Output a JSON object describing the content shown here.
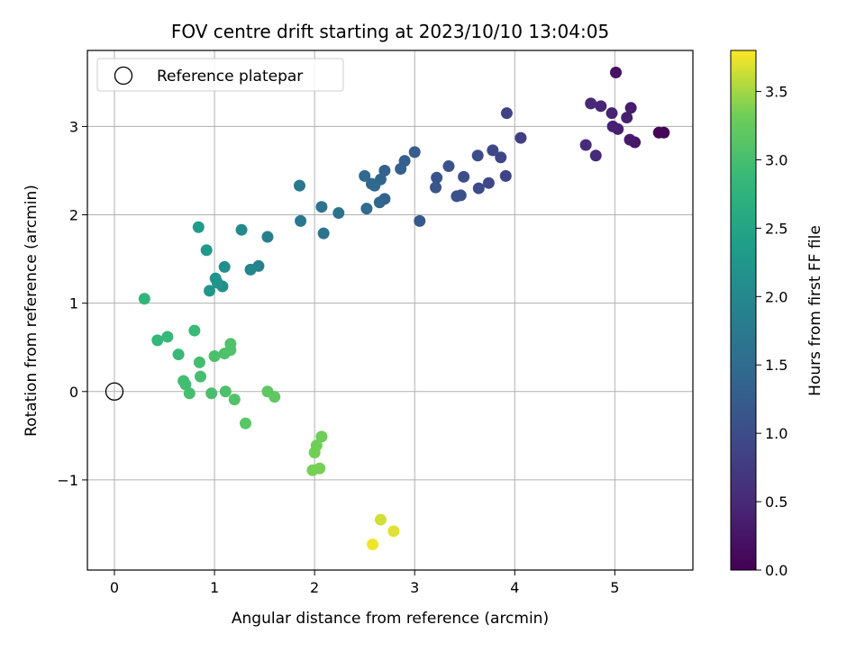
{
  "chart_data": {
    "type": "scatter",
    "title": "FOV centre drift starting at 2023/10/10 13:04:05",
    "xlabel": "Angular distance from reference (arcmin)",
    "ylabel": "Rotation from reference (arcmin)",
    "xlim": [
      -0.27,
      5.78
    ],
    "ylim": [
      -2.02,
      3.86
    ],
    "grid": true,
    "legend": {
      "placement": "top-left",
      "label": "Reference platepar"
    },
    "colorbar": {
      "label": "Hours from first FF file",
      "range": [
        0.0,
        3.8
      ],
      "colormap": "viridis",
      "ticks": [
        "0.0",
        "0.5",
        "1.0",
        "1.5",
        "2.0",
        "2.5",
        "3.0",
        "3.5"
      ],
      "tick_values": [
        0.0,
        0.5,
        1.0,
        1.5,
        2.0,
        2.5,
        3.0,
        3.5
      ]
    },
    "x_ticks": [
      "0",
      "1",
      "2",
      "3",
      "4",
      "5"
    ],
    "x_tick_values": [
      0,
      1,
      2,
      3,
      4,
      5
    ],
    "y_ticks": [
      "−1",
      "0",
      "1",
      "2",
      "3"
    ],
    "y_tick_values": [
      -1,
      0,
      1,
      2,
      3
    ],
    "reference_point": {
      "x": 0,
      "y": 0
    },
    "points": [
      {
        "x": 5.49,
        "y": 2.93,
        "c": 0.03
      },
      {
        "x": 5.44,
        "y": 2.93,
        "c": 0.06
      },
      {
        "x": 5.01,
        "y": 3.61,
        "c": 0.2
      },
      {
        "x": 5.2,
        "y": 2.82,
        "c": 0.25
      },
      {
        "x": 5.15,
        "y": 2.85,
        "c": 0.3
      },
      {
        "x": 5.16,
        "y": 3.21,
        "c": 0.33
      },
      {
        "x": 5.12,
        "y": 3.1,
        "c": 0.36
      },
      {
        "x": 5.03,
        "y": 2.97,
        "c": 0.38
      },
      {
        "x": 4.98,
        "y": 3.0,
        "c": 0.4
      },
      {
        "x": 4.97,
        "y": 3.15,
        "c": 0.42
      },
      {
        "x": 4.86,
        "y": 3.23,
        "c": 0.45
      },
      {
        "x": 4.76,
        "y": 3.26,
        "c": 0.48
      },
      {
        "x": 4.81,
        "y": 2.67,
        "c": 0.5
      },
      {
        "x": 4.71,
        "y": 2.79,
        "c": 0.53
      },
      {
        "x": 4.06,
        "y": 2.87,
        "c": 0.8
      },
      {
        "x": 3.92,
        "y": 3.15,
        "c": 0.85
      },
      {
        "x": 3.91,
        "y": 2.44,
        "c": 0.88
      },
      {
        "x": 3.86,
        "y": 2.65,
        "c": 0.9
      },
      {
        "x": 3.78,
        "y": 2.73,
        "c": 0.93
      },
      {
        "x": 3.74,
        "y": 2.36,
        "c": 0.95
      },
      {
        "x": 3.64,
        "y": 2.3,
        "c": 0.98
      },
      {
        "x": 3.63,
        "y": 2.67,
        "c": 1.0
      },
      {
        "x": 3.49,
        "y": 2.43,
        "c": 1.03
      },
      {
        "x": 3.46,
        "y": 2.22,
        "c": 1.05
      },
      {
        "x": 3.42,
        "y": 2.21,
        "c": 1.08
      },
      {
        "x": 3.34,
        "y": 2.55,
        "c": 1.1
      },
      {
        "x": 3.22,
        "y": 2.42,
        "c": 1.12
      },
      {
        "x": 3.21,
        "y": 2.31,
        "c": 1.15
      },
      {
        "x": 3.05,
        "y": 1.93,
        "c": 1.2
      },
      {
        "x": 3.0,
        "y": 2.71,
        "c": 1.25
      },
      {
        "x": 2.9,
        "y": 2.61,
        "c": 1.28
      },
      {
        "x": 2.86,
        "y": 2.52,
        "c": 1.3
      },
      {
        "x": 2.7,
        "y": 2.5,
        "c": 1.33
      },
      {
        "x": 2.7,
        "y": 2.18,
        "c": 1.35
      },
      {
        "x": 2.66,
        "y": 2.4,
        "c": 1.38
      },
      {
        "x": 2.65,
        "y": 2.14,
        "c": 1.4
      },
      {
        "x": 2.6,
        "y": 2.33,
        "c": 1.42
      },
      {
        "x": 2.57,
        "y": 2.35,
        "c": 1.45
      },
      {
        "x": 2.52,
        "y": 2.07,
        "c": 1.5
      },
      {
        "x": 2.5,
        "y": 2.44,
        "c": 1.47
      },
      {
        "x": 2.24,
        "y": 2.02,
        "c": 1.62
      },
      {
        "x": 2.09,
        "y": 1.79,
        "c": 1.65
      },
      {
        "x": 2.07,
        "y": 2.09,
        "c": 1.68
      },
      {
        "x": 1.86,
        "y": 1.93,
        "c": 1.7
      },
      {
        "x": 1.85,
        "y": 2.33,
        "c": 1.72
      },
      {
        "x": 1.53,
        "y": 1.75,
        "c": 1.85
      },
      {
        "x": 1.44,
        "y": 1.42,
        "c": 1.9
      },
      {
        "x": 1.36,
        "y": 1.38,
        "c": 1.95
      },
      {
        "x": 1.27,
        "y": 1.83,
        "c": 2.05
      },
      {
        "x": 1.1,
        "y": 1.41,
        "c": 2.1
      },
      {
        "x": 1.08,
        "y": 1.19,
        "c": 2.15
      },
      {
        "x": 1.03,
        "y": 1.23,
        "c": 2.2
      },
      {
        "x": 1.01,
        "y": 1.28,
        "c": 2.22
      },
      {
        "x": 0.95,
        "y": 1.14,
        "c": 2.25
      },
      {
        "x": 0.92,
        "y": 1.6,
        "c": 2.3
      },
      {
        "x": 0.84,
        "y": 1.86,
        "c": 2.35
      },
      {
        "x": 0.3,
        "y": 1.05,
        "c": 2.8
      },
      {
        "x": 0.43,
        "y": 0.58,
        "c": 2.85
      },
      {
        "x": 0.53,
        "y": 0.62,
        "c": 2.87
      },
      {
        "x": 0.64,
        "y": 0.42,
        "c": 2.88
      },
      {
        "x": 0.8,
        "y": 0.69,
        "c": 2.9
      },
      {
        "x": 0.69,
        "y": 0.12,
        "c": 2.95
      },
      {
        "x": 0.71,
        "y": 0.08,
        "c": 2.97
      },
      {
        "x": 0.75,
        "y": -0.02,
        "c": 3.0
      },
      {
        "x": 0.85,
        "y": 0.33,
        "c": 2.98
      },
      {
        "x": 0.86,
        "y": 0.17,
        "c": 3.0
      },
      {
        "x": 0.97,
        "y": -0.02,
        "c": 3.02
      },
      {
        "x": 1.0,
        "y": 0.4,
        "c": 3.03
      },
      {
        "x": 1.1,
        "y": 0.43,
        "c": 3.05
      },
      {
        "x": 1.11,
        "y": 0.0,
        "c": 3.05
      },
      {
        "x": 1.16,
        "y": 0.47,
        "c": 3.07
      },
      {
        "x": 1.16,
        "y": 0.54,
        "c": 3.07
      },
      {
        "x": 1.2,
        "y": -0.09,
        "c": 3.1
      },
      {
        "x": 1.31,
        "y": -0.36,
        "c": 3.15
      },
      {
        "x": 1.53,
        "y": 0.0,
        "c": 3.18
      },
      {
        "x": 1.6,
        "y": -0.06,
        "c": 3.2
      },
      {
        "x": 2.07,
        "y": -0.51,
        "c": 3.3
      },
      {
        "x": 2.02,
        "y": -0.61,
        "c": 3.32
      },
      {
        "x": 2.0,
        "y": -0.69,
        "c": 3.33
      },
      {
        "x": 2.05,
        "y": -0.87,
        "c": 3.35
      },
      {
        "x": 1.98,
        "y": -0.89,
        "c": 3.35
      },
      {
        "x": 2.66,
        "y": -1.45,
        "c": 3.65
      },
      {
        "x": 2.79,
        "y": -1.58,
        "c": 3.7
      },
      {
        "x": 2.58,
        "y": -1.73,
        "c": 3.75
      }
    ]
  }
}
